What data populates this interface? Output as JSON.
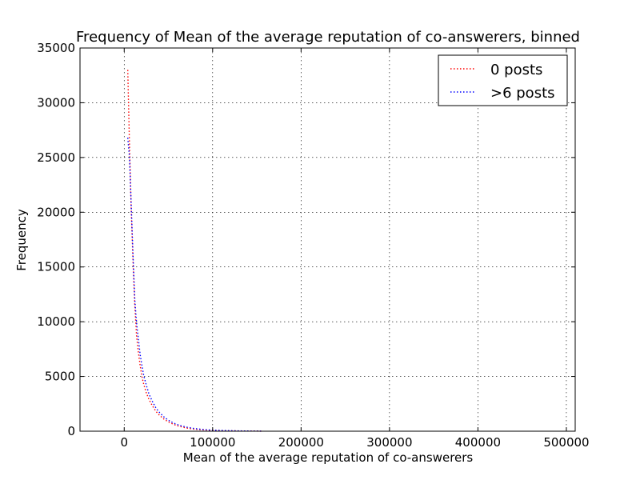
{
  "chart_data": {
    "type": "line",
    "title": "Frequency of Mean of the average reputation of co-answerers, binned",
    "xlabel": "Mean of the average reputation of co-answerers",
    "ylabel": "Frequency",
    "xlim": [
      -50000,
      510000
    ],
    "ylim": [
      0,
      35000
    ],
    "xticks": [
      0,
      100000,
      200000,
      300000,
      400000,
      500000
    ],
    "yticks": [
      0,
      5000,
      10000,
      15000,
      20000,
      25000,
      30000,
      35000
    ],
    "grid": true,
    "legend_position": "top-right",
    "series": [
      {
        "name": "0 posts",
        "color": "#ff0000",
        "line_style": "dotted",
        "x": [
          4000,
          6000,
          8000,
          10000,
          12000,
          14000,
          16000,
          18000,
          20000,
          22000,
          25000,
          28000,
          32000,
          36000,
          40000,
          45000,
          50000,
          56000,
          62000,
          70000,
          78000,
          86000,
          95000,
          105000,
          115000,
          125000,
          135000,
          145000,
          155000
        ],
        "values": [
          33000,
          26000,
          20000,
          15500,
          11500,
          8700,
          7200,
          6000,
          5000,
          4300,
          3500,
          2900,
          2300,
          1800,
          1450,
          1100,
          850,
          620,
          450,
          300,
          200,
          140,
          95,
          60,
          40,
          28,
          18,
          12,
          8
        ]
      },
      {
        "name": ">6 posts",
        "color": "#0000ff",
        "line_style": "dotted",
        "x": [
          4000,
          6000,
          8000,
          10000,
          12000,
          14000,
          16000,
          18000,
          20000,
          22000,
          25000,
          28000,
          32000,
          36000,
          40000,
          45000,
          50000,
          56000,
          62000,
          70000,
          78000,
          86000,
          95000,
          105000,
          115000,
          125000,
          135000,
          145000,
          155000
        ],
        "values": [
          26800,
          25000,
          20500,
          16000,
          12000,
          9900,
          8400,
          7000,
          6000,
          5100,
          4200,
          3400,
          2700,
          2100,
          1700,
          1300,
          1000,
          740,
          550,
          380,
          260,
          180,
          120,
          80,
          55,
          38,
          25,
          16,
          10
        ]
      }
    ]
  }
}
